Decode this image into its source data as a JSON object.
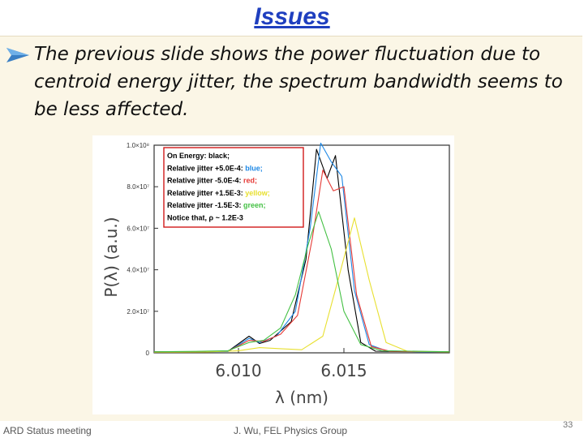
{
  "slide": {
    "title": "Issues",
    "bullet": "The previous slide shows the power fluctuation due to centroid energy jitter, the spectrum bandwidth seems to be less affected.",
    "footer_left": "ARD Status meeting",
    "footer_center": "J. Wu, FEL Physics Group",
    "page_number": "33"
  },
  "colors": {
    "title": "#1f3fbf",
    "body_bg": "#fbf6e6",
    "legend_border": "#d11a1a"
  },
  "chart_data": {
    "type": "line",
    "xlabel": "λ (nm)",
    "ylabel": "P(λ) (a.u.)",
    "xlim": [
      6.006,
      6.02
    ],
    "ylim": [
      0,
      100000000
    ],
    "x_ticks": [
      {
        "value": 6.01,
        "label": "6.010"
      },
      {
        "value": 6.015,
        "label": "6.015"
      }
    ],
    "y_ticks": [
      {
        "value": 0,
        "label": "0"
      },
      {
        "value": 20000000,
        "label": "2.0×10⁷"
      },
      {
        "value": 40000000,
        "label": "4.0×10⁷"
      },
      {
        "value": 60000000,
        "label": "6.0×10⁷"
      },
      {
        "value": 80000000,
        "label": "8.0×10⁷"
      },
      {
        "value": 100000000,
        "label": "1.0×10⁸"
      }
    ],
    "legend": [
      {
        "label": "On Energy: black;",
        "color": "#000000"
      },
      {
        "label": "Relative jitter +5.0E-4: ",
        "tag": "blue;",
        "tag_color": "#1e88e5"
      },
      {
        "label": "Relative jitter -5.0E-4: ",
        "tag": "red;",
        "tag_color": "#e53935"
      },
      {
        "label": "Relative jitter +1.5E-3: ",
        "tag": "yellow;",
        "tag_color": "#e8e030"
      },
      {
        "label": "Relative jitter -1.5E-3: ",
        "tag": "green;",
        "tag_color": "#43c043"
      },
      {
        "label": "Notice that, ρ ~ 1.2E-3",
        "color": "#000000"
      }
    ],
    "series": [
      {
        "color": "#000000",
        "x": [
          6.006,
          6.008,
          6.0095,
          6.0105,
          6.011,
          6.0115,
          6.0125,
          6.0132,
          6.0137,
          6.0142,
          6.0146,
          6.0152,
          6.0158,
          6.0165,
          6.0175,
          6.02
        ],
        "y": [
          500000,
          600000,
          700000,
          8000000,
          4500000,
          6000000,
          15000000,
          45000000,
          98000000,
          84000000,
          95000000,
          40000000,
          5000000,
          800000,
          600000,
          500000
        ]
      },
      {
        "color": "#1e88e5",
        "x": [
          6.006,
          6.008,
          6.0095,
          6.0105,
          6.011,
          6.0118,
          6.0127,
          6.0134,
          6.0139,
          6.0144,
          6.0149,
          6.0155,
          6.0162,
          6.017,
          6.0185,
          6.02
        ],
        "y": [
          400000,
          500000,
          600000,
          7000000,
          5000000,
          8000000,
          20000000,
          60000000,
          101000000,
          92000000,
          85000000,
          30000000,
          4000000,
          1000000,
          500000,
          400000
        ]
      },
      {
        "color": "#e53935",
        "x": [
          6.006,
          6.008,
          6.0095,
          6.0105,
          6.0112,
          6.012,
          6.0128,
          6.0135,
          6.014,
          6.0145,
          6.015,
          6.0156,
          6.0163,
          6.0172,
          6.02
        ],
        "y": [
          500000,
          600000,
          800000,
          6000000,
          5500000,
          9000000,
          18000000,
          55000000,
          88000000,
          78000000,
          80000000,
          28000000,
          3000000,
          700000,
          500000
        ]
      },
      {
        "color": "#e8e030",
        "x": [
          6.006,
          6.0085,
          6.01,
          6.011,
          6.012,
          6.013,
          6.014,
          6.0148,
          6.0155,
          6.0162,
          6.017,
          6.018,
          6.02
        ],
        "y": [
          300000,
          400000,
          1000000,
          2500000,
          2000000,
          1500000,
          8000000,
          38000000,
          65000000,
          35000000,
          5000000,
          800000,
          400000
        ]
      },
      {
        "color": "#43c043",
        "x": [
          6.006,
          6.008,
          6.0095,
          6.0105,
          6.0112,
          6.012,
          6.0127,
          6.0133,
          6.0138,
          6.0144,
          6.015,
          6.0158,
          6.0168,
          6.02
        ],
        "y": [
          500000,
          700000,
          1000000,
          5000000,
          6000000,
          12000000,
          28000000,
          52000000,
          68000000,
          50000000,
          20000000,
          4000000,
          1000000,
          500000
        ]
      }
    ]
  }
}
